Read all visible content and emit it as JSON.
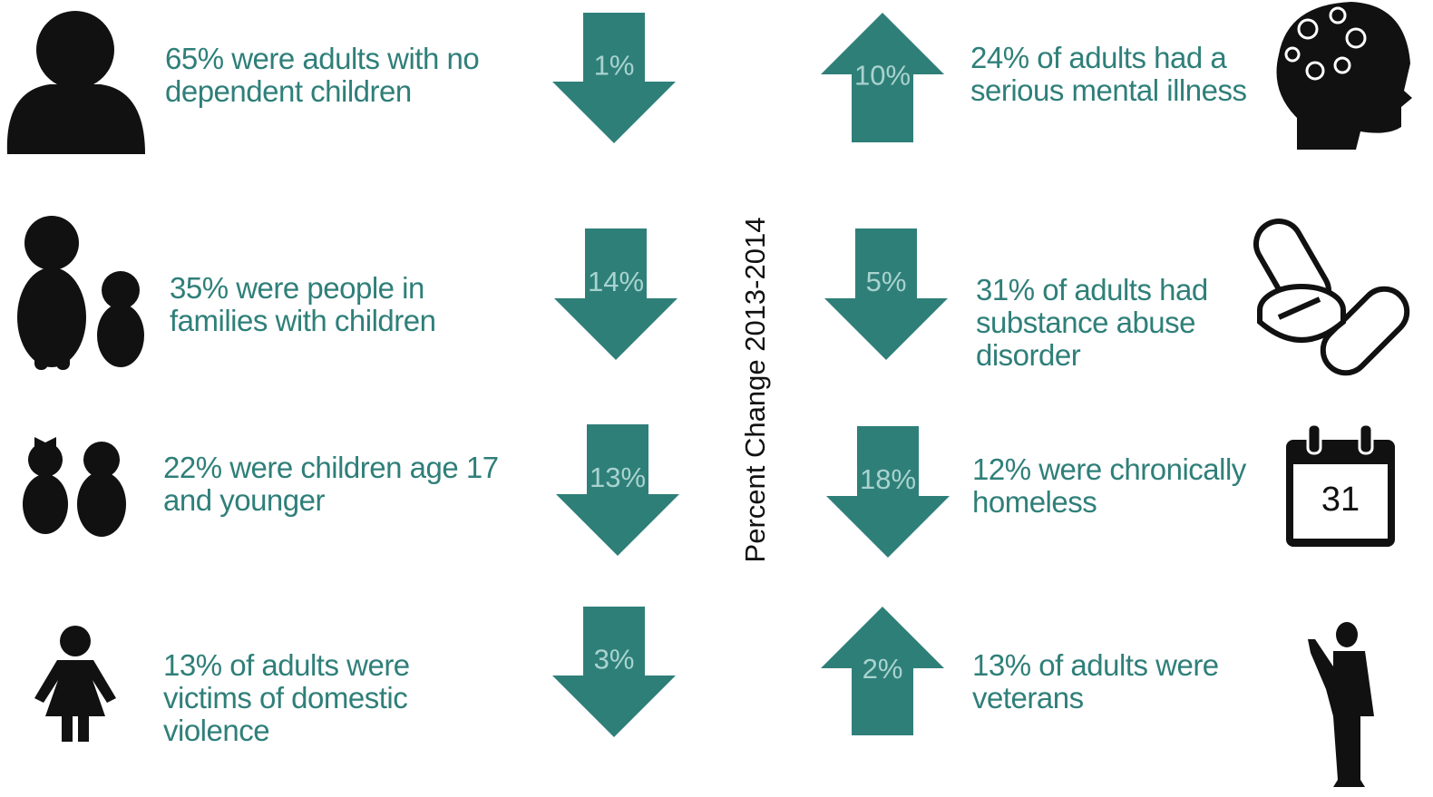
{
  "center_label": "Percent Change 2013-2014",
  "left_items": [
    {
      "lines": [
        "65% were adults with no",
        "dependent children"
      ],
      "change": "1%",
      "direction": "down"
    },
    {
      "lines": [
        "35% were people in",
        "families with children"
      ],
      "change": "14%",
      "direction": "down"
    },
    {
      "lines": [
        "22% were children age 17",
        "and younger"
      ],
      "change": "13%",
      "direction": "down"
    },
    {
      "lines": [
        "13% of adults were",
        "victims of domestic",
        "violence"
      ],
      "change": "3%",
      "direction": "down"
    }
  ],
  "right_items": [
    {
      "lines": [
        "24% of adults had a",
        "serious mental illness"
      ],
      "change": "10%",
      "direction": "up"
    },
    {
      "lines": [
        "31% of adults had",
        "substance abuse",
        "disorder"
      ],
      "change": "5%",
      "direction": "down"
    },
    {
      "lines": [
        "12% were chronically",
        "homeless"
      ],
      "change": "18%",
      "direction": "down"
    },
    {
      "lines": [
        "13% of adults were",
        "veterans"
      ],
      "change": "2%",
      "direction": "up"
    }
  ],
  "calendar_label": "31"
}
